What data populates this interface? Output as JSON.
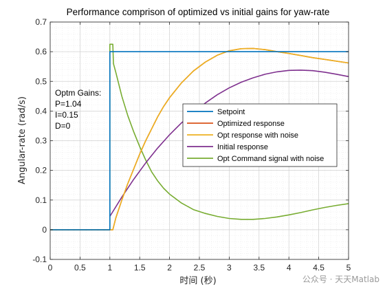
{
  "chart_data": {
    "type": "line",
    "title": "Performance comprison of optimized vs initial gains for yaw-rate",
    "xlabel": "时间 (秒)",
    "ylabel": "Angular-rate (rad/s)",
    "xlim": [
      0,
      5
    ],
    "ylim": [
      -0.1,
      0.7
    ],
    "xticks": [
      "0",
      "0.5",
      "1",
      "1.5",
      "2",
      "2.5",
      "3",
      "3.5",
      "4",
      "4.5",
      "5"
    ],
    "yticks": [
      "-0.1",
      "0",
      "0.1",
      "0.2",
      "0.3",
      "0.4",
      "0.5",
      "0.6",
      "0.7"
    ],
    "grid": true,
    "minor_grid": true,
    "legend_position": "right-center",
    "annotation": [
      "Optm Gains:",
      "P=1.04",
      "I=0.15",
      "D=0"
    ],
    "series": [
      {
        "name": "Setpoint",
        "color": "#0072BD",
        "x": [
          0,
          1.0,
          1.0,
          5.0
        ],
        "y": [
          0,
          0,
          0.6,
          0.6
        ]
      },
      {
        "name": "Optimized response",
        "color": "#D95319",
        "x": [
          0,
          1.0,
          1.05,
          1.1,
          1.2,
          1.3,
          1.4,
          1.5,
          1.6,
          1.7,
          1.8,
          1.9,
          2.0,
          2.2,
          2.4,
          2.6,
          2.8,
          3.0,
          3.2,
          3.4,
          3.6,
          3.8,
          4.0,
          4.2,
          4.4,
          4.6,
          4.8,
          5.0
        ],
        "y": [
          0,
          0,
          0,
          0.04,
          0.1,
          0.155,
          0.205,
          0.255,
          0.3,
          0.34,
          0.38,
          0.415,
          0.445,
          0.495,
          0.535,
          0.565,
          0.588,
          0.603,
          0.61,
          0.611,
          0.607,
          0.6,
          0.594,
          0.587,
          0.58,
          0.574,
          0.568,
          0.562
        ]
      },
      {
        "name": "Opt response with noise",
        "color": "#EDB120",
        "x": [
          0,
          1.0,
          1.05,
          1.1,
          1.2,
          1.3,
          1.4,
          1.5,
          1.6,
          1.7,
          1.8,
          1.9,
          2.0,
          2.2,
          2.4,
          2.6,
          2.8,
          3.0,
          3.2,
          3.4,
          3.6,
          3.8,
          4.0,
          4.2,
          4.4,
          4.6,
          4.8,
          5.0
        ],
        "y": [
          0,
          0,
          0,
          0.04,
          0.1,
          0.155,
          0.205,
          0.255,
          0.3,
          0.34,
          0.38,
          0.415,
          0.445,
          0.495,
          0.535,
          0.565,
          0.588,
          0.603,
          0.61,
          0.611,
          0.607,
          0.6,
          0.594,
          0.587,
          0.58,
          0.574,
          0.568,
          0.562
        ]
      },
      {
        "name": "Initial response",
        "color": "#7E2F8E",
        "x": [
          1.0,
          1.2,
          1.4,
          1.6,
          1.8,
          2.0,
          2.2,
          2.4,
          2.6,
          2.8,
          3.0,
          3.2,
          3.4,
          3.6,
          3.8,
          4.0,
          4.2,
          4.4,
          4.6,
          4.8,
          5.0
        ],
        "y": [
          0.045,
          0.11,
          0.17,
          0.225,
          0.275,
          0.32,
          0.36,
          0.395,
          0.427,
          0.455,
          0.478,
          0.497,
          0.512,
          0.524,
          0.532,
          0.537,
          0.538,
          0.536,
          0.531,
          0.524,
          0.516
        ]
      },
      {
        "name": "Opt Command signal with noise",
        "color": "#77AC30",
        "x": [
          0,
          1.0,
          1.0,
          1.05,
          1.06,
          1.1,
          1.2,
          1.3,
          1.4,
          1.5,
          1.6,
          1.7,
          1.8,
          1.9,
          2.0,
          2.2,
          2.4,
          2.6,
          2.8,
          3.0,
          3.2,
          3.4,
          3.6,
          3.8,
          4.0,
          4.2,
          4.4,
          4.6,
          4.8,
          5.0
        ],
        "y": [
          0,
          0,
          0.625,
          0.625,
          0.56,
          0.53,
          0.45,
          0.385,
          0.33,
          0.28,
          0.235,
          0.195,
          0.165,
          0.14,
          0.12,
          0.09,
          0.068,
          0.055,
          0.045,
          0.038,
          0.035,
          0.035,
          0.038,
          0.043,
          0.05,
          0.058,
          0.067,
          0.075,
          0.082,
          0.088
        ]
      }
    ]
  },
  "watermark": "公众号 · 天天Matlab"
}
